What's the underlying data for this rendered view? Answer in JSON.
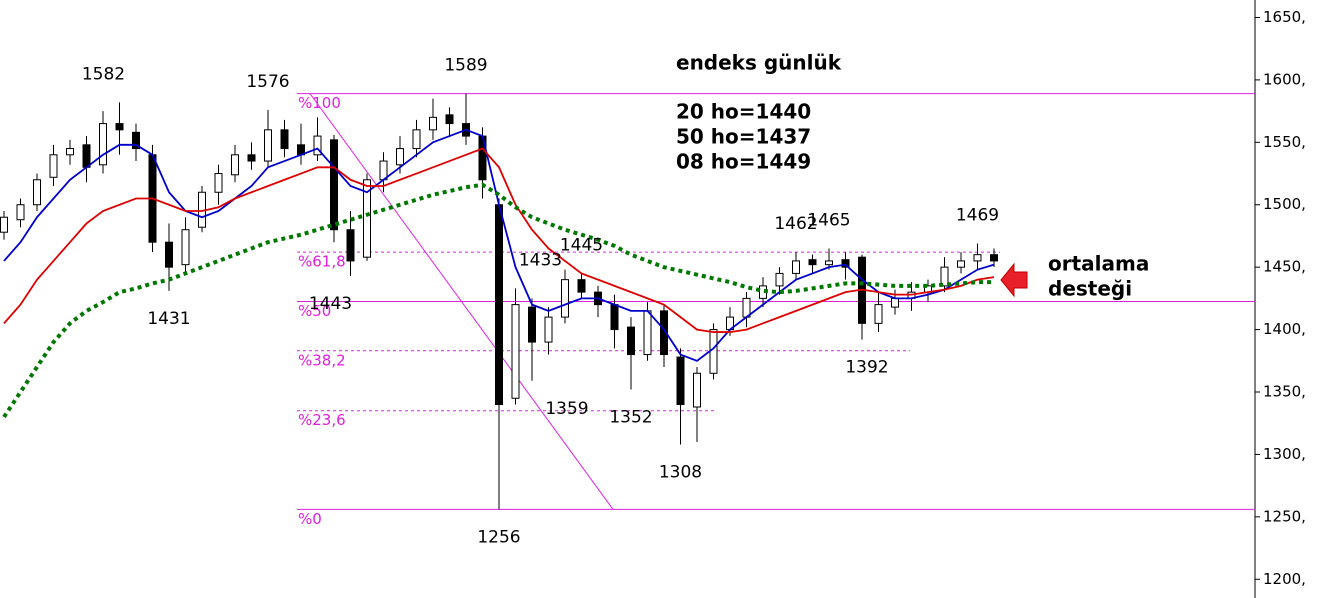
{
  "chart_data": {
    "type": "candlestick",
    "title": "endeks günlük",
    "annotations": [
      "20 ho=1440",
      "50 ho=1437",
      "08 ho=1449"
    ],
    "callout": [
      "ortalama",
      "desteği"
    ],
    "ylim": [
      1185,
      1664
    ],
    "yticks": [
      {
        "value": 1200,
        "label": "1200,"
      },
      {
        "value": 1250,
        "label": "1250,"
      },
      {
        "value": 1300,
        "label": "1300,"
      },
      {
        "value": 1350,
        "label": "1350,"
      },
      {
        "value": 1400,
        "label": "1400,"
      },
      {
        "value": 1450,
        "label": "1450,"
      },
      {
        "value": 1500,
        "label": "1500,"
      },
      {
        "value": 1550,
        "label": "1550,"
      },
      {
        "value": 1600,
        "label": "1600,"
      },
      {
        "value": 1650,
        "label": "1650,"
      }
    ],
    "up_color": "#ffffff",
    "down_color": "#000000",
    "candles": {
      "open": [
        1478,
        1488,
        1500,
        1522,
        1540,
        1548,
        1532,
        1565,
        1558,
        1540,
        1470,
        1452,
        1482,
        1510,
        1524,
        1540,
        1535,
        1560,
        1548,
        1540,
        1552,
        1480,
        1458,
        1520,
        1532,
        1545,
        1560,
        1572,
        1565,
        1555,
        1500,
        1345,
        1418,
        1390,
        1410,
        1440,
        1430,
        1420,
        1402,
        1380,
        1415,
        1378,
        1338,
        1365,
        1400,
        1410,
        1425,
        1435,
        1445,
        1456,
        1452,
        1456,
        1458,
        1405,
        1418,
        1425,
        1430,
        1435,
        1450,
        1455,
        1460
      ],
      "high": [
        1495,
        1505,
        1525,
        1548,
        1552,
        1555,
        1575,
        1582,
        1565,
        1548,
        1485,
        1490,
        1515,
        1532,
        1548,
        1550,
        1576,
        1568,
        1565,
        1570,
        1556,
        1495,
        1525,
        1542,
        1555,
        1568,
        1585,
        1578,
        1589,
        1562,
        1505,
        1433,
        1425,
        1418,
        1448,
        1445,
        1435,
        1428,
        1410,
        1422,
        1420,
        1385,
        1370,
        1405,
        1418,
        1430,
        1442,
        1450,
        1462,
        1460,
        1465,
        1462,
        1460,
        1430,
        1432,
        1438,
        1440,
        1458,
        1462,
        1469,
        1465
      ],
      "low": [
        1472,
        1482,
        1495,
        1515,
        1532,
        1518,
        1525,
        1540,
        1535,
        1462,
        1431,
        1445,
        1478,
        1500,
        1518,
        1528,
        1530,
        1538,
        1532,
        1535,
        1470,
        1443,
        1455,
        1510,
        1525,
        1538,
        1552,
        1555,
        1548,
        1505,
        1256,
        1340,
        1359,
        1380,
        1405,
        1425,
        1410,
        1385,
        1352,
        1375,
        1370,
        1308,
        1310,
        1360,
        1395,
        1402,
        1418,
        1428,
        1440,
        1445,
        1448,
        1440,
        1392,
        1398,
        1412,
        1415,
        1422,
        1430,
        1445,
        1448,
        1450
      ],
      "close": [
        1490,
        1500,
        1520,
        1540,
        1545,
        1530,
        1565,
        1560,
        1545,
        1470,
        1450,
        1480,
        1510,
        1525,
        1540,
        1535,
        1560,
        1545,
        1540,
        1555,
        1480,
        1455,
        1520,
        1535,
        1545,
        1560,
        1570,
        1565,
        1555,
        1520,
        1340,
        1420,
        1390,
        1410,
        1440,
        1430,
        1420,
        1400,
        1380,
        1415,
        1380,
        1340,
        1365,
        1400,
        1410,
        1425,
        1435,
        1445,
        1455,
        1452,
        1455,
        1450,
        1405,
        1420,
        1425,
        1430,
        1435,
        1450,
        1455,
        1460,
        1455
      ]
    },
    "overlays": [
      {
        "color": "#0000cc",
        "style": "solid",
        "values": [
          1455,
          1470,
          1490,
          1505,
          1520,
          1530,
          1540,
          1548,
          1548,
          1540,
          1510,
          1495,
          1490,
          1495,
          1505,
          1515,
          1530,
          1535,
          1540,
          1545,
          1530,
          1515,
          1510,
          1520,
          1530,
          1540,
          1550,
          1555,
          1560,
          1555,
          1500,
          1450,
          1420,
          1415,
          1420,
          1425,
          1425,
          1420,
          1415,
          1415,
          1400,
          1380,
          1375,
          1385,
          1400,
          1410,
          1420,
          1430,
          1440,
          1445,
          1450,
          1452,
          1440,
          1430,
          1425,
          1425,
          1428,
          1432,
          1440,
          1448,
          1452
        ]
      },
      {
        "color": "#dd0000",
        "style": "solid",
        "values": [
          1405,
          1420,
          1440,
          1455,
          1470,
          1485,
          1495,
          1500,
          1505,
          1505,
          1500,
          1495,
          1495,
          1498,
          1505,
          1510,
          1515,
          1520,
          1525,
          1530,
          1530,
          1520,
          1515,
          1515,
          1520,
          1525,
          1530,
          1535,
          1540,
          1545,
          1530,
          1500,
          1480,
          1465,
          1455,
          1445,
          1440,
          1435,
          1430,
          1425,
          1420,
          1410,
          1400,
          1398,
          1398,
          1400,
          1405,
          1410,
          1415,
          1420,
          1425,
          1430,
          1432,
          1430,
          1428,
          1428,
          1430,
          1432,
          1435,
          1440,
          1442
        ]
      },
      {
        "color": "#007700",
        "style": "dotted",
        "values": [
          1330,
          1350,
          1370,
          1390,
          1405,
          1415,
          1422,
          1430,
          1433,
          1437,
          1440,
          1445,
          1450,
          1455,
          1460,
          1465,
          1470,
          1473,
          1476,
          1480,
          1484,
          1488,
          1492,
          1496,
          1500,
          1504,
          1508,
          1511,
          1514,
          1516,
          1508,
          1498,
          1490,
          1485,
          1480,
          1476,
          1472,
          1467,
          1460,
          1455,
          1450,
          1447,
          1444,
          1441,
          1438,
          1434,
          1431,
          1430,
          1431,
          1433,
          1435,
          1437,
          1437,
          1436,
          1435,
          1435,
          1435,
          1436,
          1437,
          1438,
          1438
        ]
      }
    ],
    "fib_color": "#e020e0",
    "fib_levels": [
      {
        "value": 1589,
        "label": "%100"
      },
      {
        "value": 1462,
        "label": "%61,8"
      },
      {
        "value": 1422.5,
        "label": "%50"
      },
      {
        "value": 1383,
        "label": "%38,2"
      },
      {
        "value": 1335,
        "label": "%23,6"
      },
      {
        "value": 1256,
        "label": "%0"
      }
    ]
  }
}
